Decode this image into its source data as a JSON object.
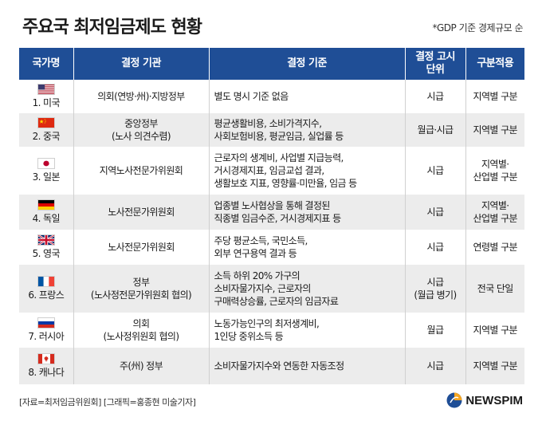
{
  "title": "주요국 최저임금제도 현황",
  "note": "*GDP 기준 경제규모 순",
  "headers": [
    "국가명",
    "결정 기관",
    "결정 기준",
    "결정 고시\n단위",
    "구분적용"
  ],
  "rows": [
    {
      "flag": "us-flag-icon",
      "country": "1. 미국",
      "body": "의회(연방·州)·지방정부",
      "criteria": "별도 명시 기준 없음",
      "unit": "시급",
      "apply": "지역별 구분"
    },
    {
      "flag": "cn-flag-icon",
      "country": "2. 중국",
      "body": "중앙정부\n(노사 의견수렴)",
      "criteria": "평균생활비용, 소비가격지수,\n사회보험비용, 평균임금, 실업률 등",
      "unit": "월급·시급",
      "apply": "지역별 구분"
    },
    {
      "flag": "jp-flag-icon",
      "country": "3. 일본",
      "body": "지역노사전문가위원회",
      "criteria": "근로자의 생계비, 사업별 지급능력,\n거시경제지표, 임금교섭 결과,\n생활보호 지표, 영향률·미만율, 임금 등",
      "unit": "시급",
      "apply": "지역별·\n산업별 구분"
    },
    {
      "flag": "de-flag-icon",
      "country": "4. 독일",
      "body": "노사전문가위원회",
      "criteria": "업종별 노사협상을 통해 결정된\n직종별 임금수준, 거시경제지표 등",
      "unit": "시급",
      "apply": "지역별·\n산업별 구분"
    },
    {
      "flag": "uk-flag-icon",
      "country": "5. 영국",
      "body": "노사전문가위원회",
      "criteria": "주당 평균소득, 국민소득,\n외부 연구용역 결과 등",
      "unit": "시급",
      "apply": "연령별 구분"
    },
    {
      "flag": "fr-flag-icon",
      "country": "6. 프랑스",
      "body": "정부\n(노사정전문가위원회 협의)",
      "criteria": "소득 하위 20% 가구의\n소비자물가지수, 근로자의\n구매력상승률, 근로자의 임금자료",
      "unit": "시급\n(월급 병기)",
      "apply": "전국 단일"
    },
    {
      "flag": "ru-flag-icon",
      "country": "7. 러시아",
      "body": "의회\n(노사정위원회 협의)",
      "criteria": "노동가능인구의 최저생계비,\n1인당 중위소득 등",
      "unit": "월급",
      "apply": "지역별 구분"
    },
    {
      "flag": "ca-flag-icon",
      "country": "8. 캐나다",
      "body": "주(州) 정부",
      "criteria": "소비자물가지수와 연동한 자동조정",
      "unit": "시급",
      "apply": "지역별 구분"
    }
  ],
  "source": "[자료=최저임금위원회] [그래픽=홍종현 미술기자]",
  "logo": {
    "text": "NEWSPIM",
    "icon": "newspim-logo-icon"
  },
  "colors": {
    "header": "#1f4e96",
    "stripe": "#ececec"
  }
}
